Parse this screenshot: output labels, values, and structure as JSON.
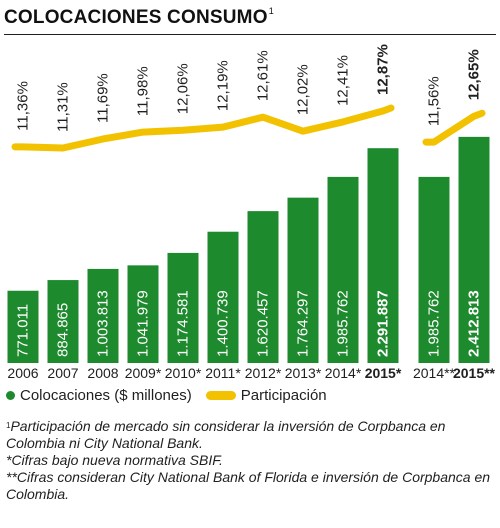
{
  "title": "COLOCACIONES CONSUMO",
  "title_sup": "1",
  "colors": {
    "bar": "#1e8a2e",
    "line": "#f2c200",
    "text": "#1f1f1f",
    "bar_text": "#ffffff"
  },
  "legend": {
    "bar_label": "Colocaciones ($ millones)",
    "line_label": "Participación"
  },
  "chart_data": {
    "type": "bar",
    "groups": [
      {
        "categories": [
          "2006",
          "2007",
          "2008",
          "2009*",
          "2010*",
          "2011*",
          "2012*",
          "2013*",
          "2014*",
          "2015*"
        ],
        "bar_labels": [
          "771.011",
          "884.865",
          "1.003.813",
          "1.041.979",
          "1.174.581",
          "1.400.739",
          "1.620.457",
          "1.764.297",
          "1.985.762",
          "2.291.887"
        ],
        "values": [
          771011,
          884865,
          1003813,
          1041979,
          1174581,
          1400739,
          1620457,
          1764297,
          1985762,
          2291887
        ],
        "line_labels": [
          "11,36%",
          "11,31%",
          "11,69%",
          "11,98%",
          "12,06%",
          "12,19%",
          "12,61%",
          "12,02%",
          "12,41%",
          "12,87%"
        ],
        "line_values": [
          11.36,
          11.31,
          11.69,
          11.98,
          12.06,
          12.19,
          12.61,
          12.02,
          12.41,
          12.87
        ],
        "highlight": [
          false,
          false,
          false,
          false,
          false,
          false,
          false,
          false,
          false,
          true
        ]
      },
      {
        "categories": [
          "2014**",
          "2015**"
        ],
        "bar_labels": [
          "1.985.762",
          "2.412.813"
        ],
        "values": [
          1985762,
          2412813
        ],
        "line_labels": [
          "11,56%",
          "12,65%"
        ],
        "line_values": [
          11.56,
          12.65
        ],
        "highlight": [
          false,
          true
        ]
      }
    ],
    "series": [
      {
        "name": "Colocaciones ($ millones)",
        "kind": "bar"
      },
      {
        "name": "Participación",
        "kind": "line",
        "unit": "%"
      }
    ],
    "xlabel": "",
    "ylabel": "",
    "ylim": [
      0,
      2600000
    ],
    "line_ylim": [
      10.5,
      13.0
    ],
    "grid": false,
    "legend_position": "bottom-left"
  },
  "notes": [
    {
      "sup": "1",
      "text": "Participación de mercado sin considerar la inversión de Corpbanca en Colombia ni City National Bank."
    },
    {
      "sup": "",
      "text": "*Cifras bajo nueva normativa SBIF."
    },
    {
      "sup": "",
      "text": "**Cifras consideran City National Bank of Florida e inversión de Corpbanca en Colombia."
    }
  ]
}
